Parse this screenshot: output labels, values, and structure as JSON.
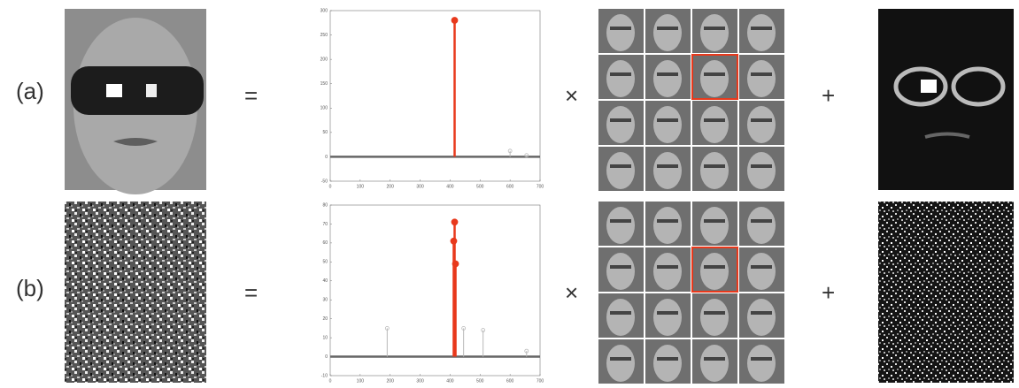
{
  "rows": [
    {
      "label": "(a)",
      "equals": "=",
      "times": "×",
      "plus": "+"
    },
    {
      "label": "(b)",
      "equals": "=",
      "times": "×",
      "plus": "+"
    }
  ],
  "chart_data": [
    {
      "type": "stem",
      "xlim": [
        0,
        700
      ],
      "ylim": [
        -50,
        300
      ],
      "xticks": [
        0,
        100,
        200,
        300,
        400,
        500,
        600,
        700
      ],
      "yticks": [
        -50,
        0,
        50,
        100,
        150,
        200,
        250,
        300
      ],
      "series": [
        {
          "color": "#e8391c",
          "x": [
            415
          ],
          "values": [
            280
          ]
        },
        {
          "color": "#b8b8b8",
          "x": [
            600,
            655
          ],
          "values": [
            12,
            3
          ]
        }
      ]
    },
    {
      "type": "stem",
      "xlim": [
        0,
        700
      ],
      "ylim": [
        -10,
        80
      ],
      "xticks": [
        0,
        100,
        200,
        300,
        400,
        500,
        600,
        700
      ],
      "yticks": [
        -10,
        0,
        10,
        20,
        30,
        40,
        50,
        60,
        70,
        80
      ],
      "series": [
        {
          "color": "#e8391c",
          "x": [
            415,
            412,
            418
          ],
          "values": [
            71,
            61,
            49
          ]
        },
        {
          "color": "#b8b8b8",
          "x": [
            190,
            445,
            510,
            655
          ],
          "values": [
            15,
            15,
            14,
            3
          ]
        }
      ]
    }
  ]
}
